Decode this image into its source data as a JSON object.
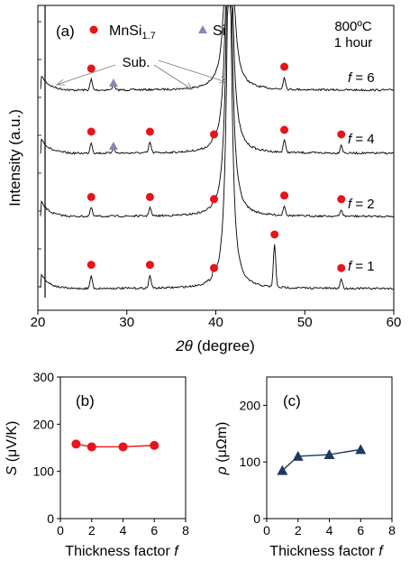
{
  "chart_data": [
    {
      "panel": "(a)",
      "type": "line",
      "xlabel_symbol": "2θ",
      "xlabel_unit": "(degree)",
      "ylabel": "Intensity (a.u.)",
      "xlim": [
        20,
        60
      ],
      "x_ticks": [
        "20",
        "30",
        "40",
        "50",
        "60"
      ],
      "condition_temp": "800ºC",
      "condition_time": "1 hour",
      "legend": [
        {
          "label_main": "MnSi",
          "label_sub": "1.7",
          "marker": "circle",
          "color": "#e8141b"
        },
        {
          "label_main": "Si",
          "label_sub": "",
          "marker": "triangle",
          "color": "#8f83b8"
        }
      ],
      "annotation": "Sub.",
      "series": [
        {
          "name": "f = 6",
          "label_var": "f",
          "label_val": " = 6",
          "peaks_mnsi": [
            26.0,
            47.7
          ],
          "peaks_si": [
            28.5
          ]
        },
        {
          "name": "f = 4",
          "label_var": "f",
          "label_val": " = 4",
          "peaks_mnsi": [
            26.0,
            32.6,
            39.8,
            47.7,
            54.1
          ],
          "peaks_si": [
            28.5
          ]
        },
        {
          "name": "f = 2",
          "label_var": "f",
          "label_val": " = 2",
          "peaks_mnsi": [
            26.0,
            32.6,
            39.8,
            47.7,
            54.1
          ],
          "peaks_si": []
        },
        {
          "name": "f = 1",
          "label_var": "f",
          "label_val": " = 1",
          "peaks_mnsi": [
            26.0,
            32.6,
            39.8,
            46.6,
            54.1
          ],
          "peaks_si": []
        }
      ]
    },
    {
      "panel": "(b)",
      "type": "line",
      "xlabel_main": "Thickness factor ",
      "xlabel_var": "f",
      "ylabel_var": "S",
      "ylabel_unit": " (μV/K)",
      "xlim": [
        0,
        8
      ],
      "ylim": [
        0,
        300
      ],
      "x_ticks": [
        "0",
        "2",
        "4",
        "6",
        "8"
      ],
      "y_ticks": [
        "0",
        "100",
        "200",
        "300"
      ],
      "color": "#e8141b",
      "marker": "circle",
      "x": [
        1,
        2,
        4,
        6
      ],
      "y": [
        158,
        152,
        152,
        155
      ]
    },
    {
      "panel": "(c)",
      "type": "line",
      "xlabel_main": "Thickness factor ",
      "xlabel_var": "f",
      "ylabel_var": "ρ",
      "ylabel_unit": " (μΩm)",
      "xlim": [
        0,
        8
      ],
      "ylim": [
        0,
        250
      ],
      "x_ticks": [
        "0",
        "2",
        "4",
        "6",
        "8"
      ],
      "y_ticks": [
        "0",
        "100",
        "200"
      ],
      "color": "#1f3864",
      "marker": "triangle",
      "x": [
        1,
        2,
        4,
        6
      ],
      "y": [
        85,
        110,
        113,
        122
      ]
    }
  ]
}
